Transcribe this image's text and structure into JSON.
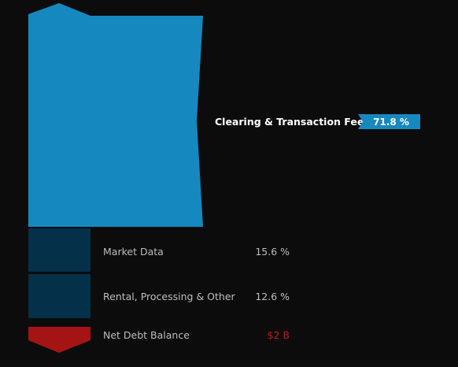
{
  "chart_data": {
    "type": "bar",
    "categories": [
      "Clearing & Transaction Fee",
      "Market Data",
      "Rental, Processing & Other"
    ],
    "values": [
      71.8,
      15.6,
      12.6
    ],
    "value_labels": [
      "71.8 %",
      "15.6 %",
      "12.6 %"
    ],
    "net_debt": {
      "label": "Net Debt Balance",
      "value": "$2 B"
    },
    "colors": {
      "primary": "#1688c0",
      "secondary": "#05304a",
      "debt": "#a51414",
      "debt_text": "#c01a1a",
      "background": "#0c0c0d"
    }
  }
}
